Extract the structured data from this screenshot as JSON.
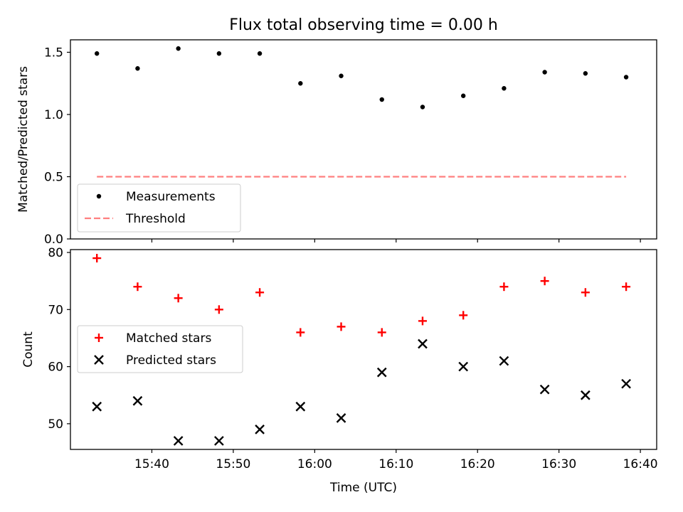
{
  "title": "Flux total observing time = 0.00 h",
  "chart_data": [
    {
      "type": "scatter",
      "ylabel": "Matched/Predicted stars",
      "ylim": [
        0,
        1.6
      ],
      "yticks": [
        0.0,
        0.5,
        1.0,
        1.5
      ],
      "ytick_labels": [
        "0.0",
        "0.5",
        "1.0",
        "1.5"
      ],
      "xlim": [
        "15:30:00",
        "16:42:00"
      ],
      "x": [
        "15:33:15",
        "15:38:15",
        "15:43:15",
        "15:48:15",
        "15:53:15",
        "15:58:15",
        "16:03:15",
        "16:08:15",
        "16:13:15",
        "16:18:15",
        "16:23:15",
        "16:28:15",
        "16:33:15",
        "16:38:15"
      ],
      "series": [
        {
          "name": "Measurements",
          "kind": "scatter-dot",
          "color": "#000000",
          "values": [
            1.49,
            1.37,
            1.53,
            1.49,
            1.49,
            1.25,
            1.31,
            1.12,
            1.06,
            1.15,
            1.21,
            1.34,
            1.33,
            1.3
          ]
        },
        {
          "name": "Threshold",
          "kind": "dashed-line",
          "color": "#ff7f7f",
          "values": [
            0.5,
            0.5,
            0.5,
            0.5,
            0.5,
            0.5,
            0.5,
            0.5,
            0.5,
            0.5,
            0.5,
            0.5,
            0.5,
            0.5
          ]
        }
      ],
      "legend": "lower-left",
      "grid": false
    },
    {
      "type": "scatter",
      "xlabel": "Time (UTC)",
      "ylabel": "Count",
      "ylim": [
        45.5,
        80.5
      ],
      "yticks": [
        50,
        60,
        70,
        80
      ],
      "ytick_labels": [
        "50",
        "60",
        "70",
        "80"
      ],
      "xlim": [
        "15:30:00",
        "16:42:00"
      ],
      "xticks": [
        "15:40:00",
        "15:50:00",
        "16:00:00",
        "16:10:00",
        "16:20:00",
        "16:30:00",
        "16:40:00"
      ],
      "xtick_labels": [
        "15:40",
        "15:50",
        "16:00",
        "16:10",
        "16:20",
        "16:30",
        "16:40"
      ],
      "x": [
        "15:33:15",
        "15:38:15",
        "15:43:15",
        "15:48:15",
        "15:53:15",
        "15:58:15",
        "16:03:15",
        "16:08:15",
        "16:13:15",
        "16:18:15",
        "16:23:15",
        "16:28:15",
        "16:33:15",
        "16:38:15"
      ],
      "series": [
        {
          "name": "Matched stars",
          "kind": "plus",
          "color": "#ff0000",
          "values": [
            79,
            74,
            72,
            70,
            73,
            66,
            67,
            66,
            68,
            69,
            74,
            75,
            73,
            74
          ]
        },
        {
          "name": "Predicted stars",
          "kind": "x",
          "color": "#000000",
          "values": [
            53,
            54,
            47,
            47,
            49,
            53,
            51,
            59,
            64,
            60,
            61,
            56,
            55,
            57
          ]
        }
      ],
      "legend": "center-left",
      "grid": false
    }
  ]
}
